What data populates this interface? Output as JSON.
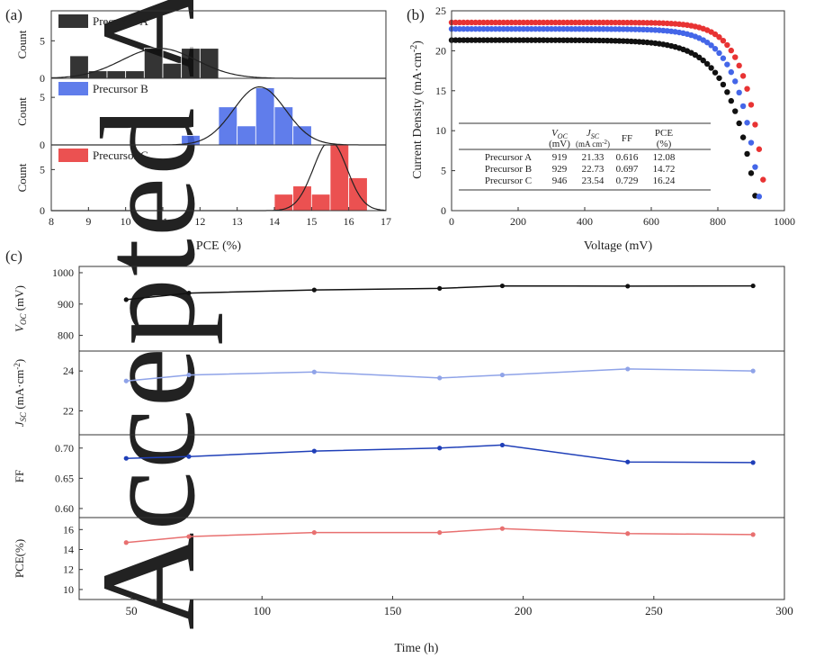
{
  "watermark": "Accepted Article",
  "colors": {
    "A": "#111111",
    "B": "#4466e8",
    "C": "#e83333",
    "vocLine": "#111111",
    "jscLine": "#8fa3e8",
    "ffLine": "#1f3fb8",
    "pceLine": "#e87070"
  },
  "chart_data": [
    {
      "panel": "(a)",
      "type": "bar",
      "subtype": "histogram",
      "xlabel": "PCE (%)",
      "xlim": [
        8,
        17
      ],
      "xticks": [
        "8",
        "9",
        "10",
        "11",
        "12",
        "13",
        "14",
        "15",
        "16",
        "17"
      ],
      "ylabel": "Count",
      "bin_width": 0.5,
      "series": [
        {
          "name": "Precursor A",
          "color": "#111111",
          "ylim": [
            0,
            9
          ],
          "yticks": [
            "0",
            "5"
          ],
          "bins": [
            [
              8.5,
              3
            ],
            [
              9.0,
              1
            ],
            [
              9.5,
              1
            ],
            [
              10.0,
              1
            ],
            [
              10.5,
              4
            ],
            [
              11.0,
              2
            ],
            [
              11.5,
              4
            ],
            [
              12.0,
              4
            ]
          ],
          "fit": {
            "mean": 10.9,
            "sd": 1.0,
            "peak": 4
          }
        },
        {
          "name": "Precursor B",
          "color": "#4466e8",
          "ylim": [
            0,
            7
          ],
          "yticks": [
            "0",
            "5"
          ],
          "bins": [
            [
              11.5,
              1
            ],
            [
              12.0,
              0
            ],
            [
              12.5,
              4
            ],
            [
              13.0,
              2
            ],
            [
              13.5,
              6
            ],
            [
              14.0,
              4
            ],
            [
              14.5,
              2
            ],
            [
              15.0,
              0
            ]
          ],
          "fit": {
            "mean": 13.6,
            "sd": 0.7,
            "peak": 6.1
          }
        },
        {
          "name": "Precursor C",
          "color": "#e83333",
          "ylim": [
            0,
            8
          ],
          "yticks": [
            "0",
            "5"
          ],
          "bins": [
            [
              14.0,
              2
            ],
            [
              14.5,
              3
            ],
            [
              15.0,
              2
            ],
            [
              15.5,
              8
            ],
            [
              16.0,
              4
            ]
          ],
          "fit": {
            "mean": 15.5,
            "sd": 0.45,
            "peak": 8.5
          }
        }
      ]
    },
    {
      "panel": "(b)",
      "type": "scatter",
      "xlabel": "Voltage (mV)",
      "ylabel": "Current Density (mA·cm",
      "ylabel_sup": "-2",
      "ylabel_end": ")",
      "xlim": [
        0,
        1000
      ],
      "ylim": [
        0,
        25
      ],
      "xticks": [
        "0",
        "200",
        "400",
        "600",
        "800",
        "1000"
      ],
      "yticks": [
        "0",
        "5",
        "10",
        "15",
        "20",
        "25"
      ],
      "series": [
        {
          "name": "Precursor A",
          "color": "#111111",
          "jsc": 21.33,
          "voc": 919,
          "ff": 0.616,
          "pce": 12.08
        },
        {
          "name": "Precursor B",
          "color": "#4466e8",
          "jsc": 22.73,
          "voc": 929,
          "ff": 0.697,
          "pce": 14.72
        },
        {
          "name": "Precursor C",
          "color": "#e83333",
          "jsc": 23.54,
          "voc": 946,
          "ff": 0.729,
          "pce": 16.24
        }
      ],
      "table": {
        "voc_header": "V",
        "voc_sub": "OC",
        "voc_unit": "(mV)",
        "jsc_header": "J",
        "jsc_sub": "SC",
        "jsc_unit": "(mA cm",
        "jsc_unit_sup": "-2",
        "jsc_unit_end": ")",
        "ff_header": "FF",
        "pce_header": "PCE",
        "pce_unit": "(%)",
        "rows": [
          [
            "Precursor A",
            "919",
            "21.33",
            "0.616",
            "12.08"
          ],
          [
            "Precursor B",
            "929",
            "22.73",
            "0.697",
            "14.72"
          ],
          [
            "Precursor C",
            "946",
            "23.54",
            "0.729",
            "16.24"
          ]
        ]
      }
    },
    {
      "panel": "(c)",
      "type": "line",
      "xlabel": "Time (h)",
      "xlim": [
        30,
        300
      ],
      "xticks": [
        "50",
        "100",
        "150",
        "200",
        "250",
        "300"
      ],
      "x": [
        48,
        72,
        120,
        168,
        192,
        240,
        288
      ],
      "series": [
        {
          "name": "Voc",
          "ylabel": "V",
          "ylabel_sub": "OC",
          "ylabel_end": " (mV)",
          "ylim": [
            750,
            1020
          ],
          "yticks": [
            "800",
            "900",
            "1000"
          ],
          "color": "#111111",
          "values": [
            914,
            935,
            945,
            950,
            958,
            957,
            958
          ]
        },
        {
          "name": "Jsc",
          "ylabel": "J",
          "ylabel_sub": "SC",
          "ylabel_end": " (mA·cm",
          "ylabel_sup": "-2",
          "ylabel_end2": ")",
          "ylim": [
            20.8,
            25.0
          ],
          "yticks": [
            "22",
            "24"
          ],
          "color": "#8fa3e8",
          "values": [
            23.5,
            23.8,
            23.95,
            23.65,
            23.8,
            24.1,
            24.0
          ]
        },
        {
          "name": "FF",
          "ylabel": "FF",
          "ylim": [
            0.585,
            0.722
          ],
          "yticks": [
            "0.60",
            "0.65",
            "0.70"
          ],
          "color": "#1f3fb8",
          "values": [
            0.683,
            0.686,
            0.695,
            0.7,
            0.705,
            0.677,
            0.676
          ]
        },
        {
          "name": "PCE",
          "ylabel": "PCE(%)",
          "ylim": [
            9,
            17.2
          ],
          "yticks": [
            "10",
            "12",
            "14",
            "16"
          ],
          "color": "#e87070",
          "values": [
            14.7,
            15.3,
            15.7,
            15.7,
            16.1,
            15.6,
            15.5
          ]
        }
      ]
    }
  ]
}
